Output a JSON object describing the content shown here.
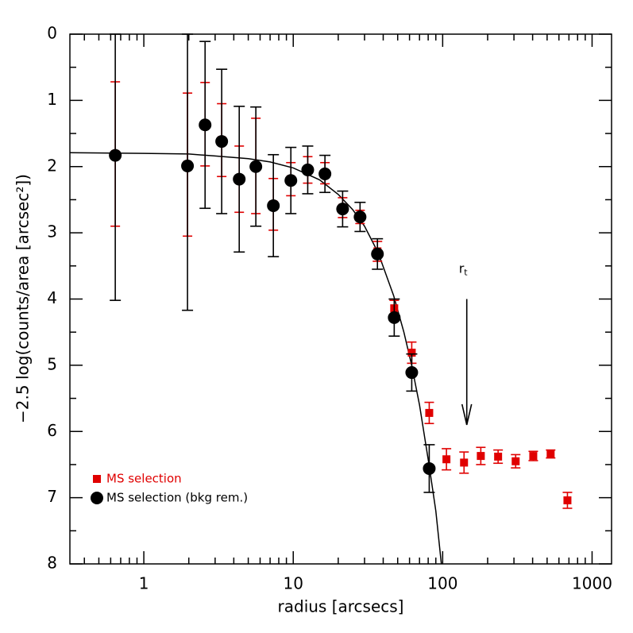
{
  "chart_data": {
    "type": "scatter",
    "xlabel": "radius [arcsecs]",
    "ylabel": "−2.5 log(counts/area [arcsec²])",
    "xscale": "log",
    "invert_y": true,
    "xlim": [
      0.32,
      1350
    ],
    "ylim": [
      0,
      8
    ],
    "xticks": [
      1,
      10,
      100,
      1000
    ],
    "xticks_minor": [
      0.4,
      0.5,
      0.6,
      0.7,
      0.8,
      0.9,
      2,
      3,
      4,
      5,
      6,
      7,
      8,
      9,
      20,
      30,
      40,
      50,
      60,
      70,
      80,
      90,
      200,
      300,
      400,
      500,
      600,
      700,
      800,
      900
    ],
    "yticks": [
      0,
      1,
      2,
      3,
      4,
      5,
      6,
      7,
      8
    ],
    "yticks_minor": [
      0.5,
      1.5,
      2.5,
      3.5,
      4.5,
      5.5,
      6.5,
      7.5
    ],
    "legend": "lower left",
    "series": [
      {
        "name": "MS selection",
        "color": "#e00000",
        "marker": "square",
        "x": [
          0.644,
          1.96,
          2.57,
          3.32,
          4.35,
          5.62,
          7.36,
          9.64,
          12.5,
          16.3,
          21.4,
          28.0,
          36.6,
          47.4,
          62.1,
          81.3,
          106,
          139,
          180,
          235,
          308,
          404,
          528,
          684
        ],
        "values": [
          1.81,
          1.97,
          1.36,
          1.6,
          2.19,
          1.99,
          2.57,
          2.19,
          2.05,
          2.1,
          2.62,
          2.76,
          3.28,
          4.14,
          4.81,
          5.72,
          6.42,
          6.47,
          6.37,
          6.38,
          6.45,
          6.37,
          6.34,
          7.04
        ],
        "errors": [
          1.09,
          1.08,
          0.63,
          0.55,
          0.5,
          0.72,
          0.39,
          0.25,
          0.2,
          0.16,
          0.15,
          0.1,
          0.15,
          0.12,
          0.16,
          0.16,
          0.16,
          0.16,
          0.13,
          0.1,
          0.1,
          0.07,
          0.06,
          0.12
        ]
      },
      {
        "name": "MS selection (bkg rem.)",
        "color": "#000000",
        "marker": "circle",
        "x": [
          0.644,
          1.96,
          2.57,
          3.32,
          4.35,
          5.62,
          7.36,
          9.64,
          12.5,
          16.3,
          21.4,
          28.0,
          36.6,
          47.4,
          62.1,
          81.3
        ],
        "values": [
          1.83,
          1.99,
          1.37,
          1.62,
          2.19,
          2.0,
          2.59,
          2.21,
          2.05,
          2.11,
          2.64,
          2.76,
          3.32,
          4.28,
          5.11,
          6.56
        ],
        "errors": [
          2.19,
          2.18,
          1.26,
          1.09,
          1.1,
          0.9,
          0.77,
          0.5,
          0.36,
          0.28,
          0.27,
          0.22,
          0.23,
          0.28,
          0.28,
          0.36
        ]
      }
    ],
    "model": {
      "color": "#000000",
      "x": [
        0.32,
        1,
        2,
        3,
        5,
        7,
        10,
        15,
        20,
        25,
        30,
        37,
        47,
        55,
        62,
        70,
        81,
        90,
        98
      ],
      "y": [
        1.79,
        1.8,
        1.81,
        1.84,
        1.88,
        1.93,
        2.02,
        2.2,
        2.42,
        2.65,
        2.9,
        3.3,
        3.95,
        4.5,
        5.0,
        5.6,
        6.5,
        7.2,
        8.0
      ]
    },
    "annotation": {
      "label": "r",
      "subscript": "t",
      "x": 145,
      "arrow_from": 4.0,
      "arrow_to": 5.9
    }
  }
}
